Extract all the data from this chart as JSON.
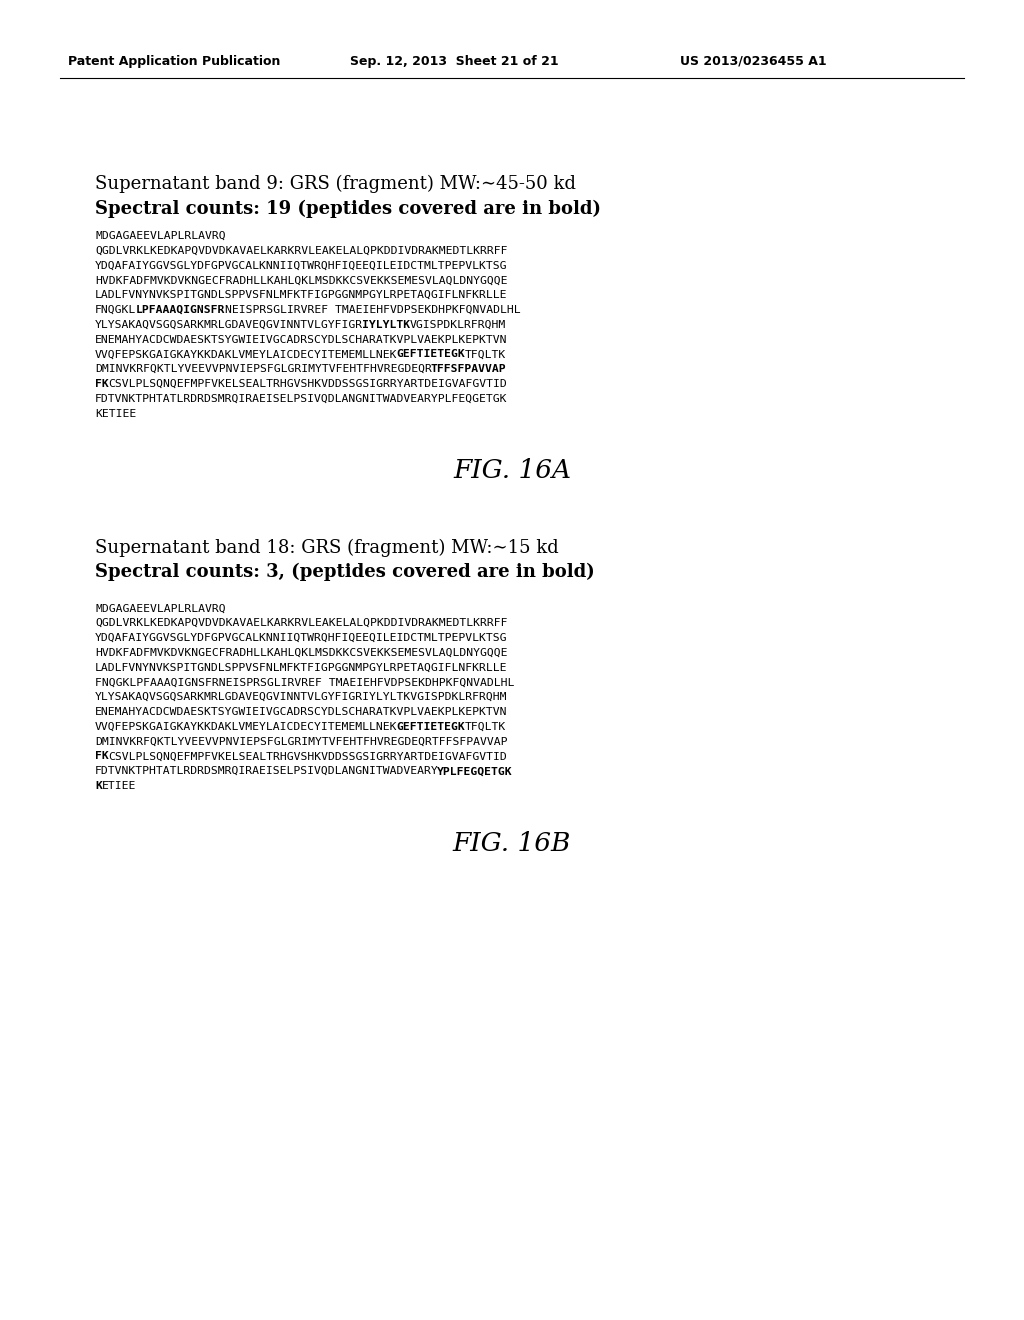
{
  "header_left": "Patent Application Publication",
  "header_mid": "Sep. 12, 2013  Sheet 21 of 21",
  "header_right": "US 2013/0236455 A1",
  "background_color": "#ffffff",
  "fig16a_label": "FIG. 16A",
  "fig16b_label": "FIG. 16B",
  "section_a_title1": "Supernatant band 9: GRS (fragment) MW:∼45-50 kd",
  "section_a_title2": "Spectral counts: 19 (peptides covered are in bold)",
  "section_b_title1": "Supernatant band 18: GRS (fragment) MW:∼15 kd",
  "section_b_title2": "Spectral counts: 3, (peptides covered are in bold)",
  "lines_a": [
    [
      "MDGAGAEEVLAPLRLAVRQ",
      "",
      ""
    ],
    [
      "QGDLVRKLKEDKAPQVDVDKAVAELKARKRVLEAKELALQPKDDIVDRAKMEDTLKRRFF",
      "",
      ""
    ],
    [
      "YDQAFAIYGGVSGLYDFGPVGCALKNNIIQTWRQHFIQEEQILEIDCTMLTPEPVLKTSG",
      "",
      ""
    ],
    [
      "HVDKFADFMVKDVKNGECFRADHLLKAHLQKLMSDKKCSVEKKSEMESVLAQLDNYGQQE",
      "",
      ""
    ],
    [
      "LADLFVNYNVKSPITGNDLSPPVSFNLMFKTFIGPGGNMPGYLRPETAQGIFLNFKRLLE",
      "",
      ""
    ],
    [
      "FNQGKL",
      "LPFAAAQIGNSFR",
      "NEISPRSGLIRVREF TMAEIEHFVDPSEKDHPKFQNVADLHL"
    ],
    [
      "YLYSAKAQVSGQSARKMRLGDAVEQGVINNTVLGYFIGR",
      "IYLYLTK",
      "VGISPDKLRFRQHM"
    ],
    [
      "ENEMAHYACDCWDAESKTSYGWIEIVGCADRSCYDLSCHARATKVPLVAEKPLKEPKTVN",
      "",
      ""
    ],
    [
      "VVQFEPSKGAIGKAYKKDAKLVMEYLAICDECYITEMEMLLNEK",
      "GEFTIETEGK",
      "TFQLTK"
    ],
    [
      "DMINVKRFQKTLYVEEVVPNVIEPSFGLGRIMYTVFEHTFHVREGDEQR",
      "TFFSFPAVVAP",
      ""
    ],
    [
      "",
      "FK",
      "CSVLPLSQNQEFMPFVKELSEALTRHGVSHKVDDSSGSIGRRYARTDEIGVAFGVTID"
    ],
    [
      "FDTVNKTPHTATLRDRDSMRQIRAEISELPSIVQDLANGNITWADVEARYPLFEQGETGK",
      "",
      ""
    ],
    [
      "KETIEE",
      "",
      ""
    ]
  ],
  "lines_b": [
    [
      "MDGAGAEEVLAPLRLAVRQ",
      "",
      ""
    ],
    [
      "QGDLVRKLKEDKAPQVDVDKAVAELKARKRVLEAKELALQPKDDIVDRAKMEDTLKRRFF",
      "",
      ""
    ],
    [
      "YDQAFAIYGGVSGLYDFGPVGCALKNNIIQTWRQHFIQEEQILEIDCTMLTPEPVLKTSG",
      "",
      ""
    ],
    [
      "HVDKFADFMVKDVKNGECFRADHLLKAHLQKLMSDKKCSVEKKSEMESVLAQLDNYGQQE",
      "",
      ""
    ],
    [
      "LADLFVNYNVKSPITGNDLSPPVSFNLMFKTFIGPGGNMPGYLRPETAQGIFLNFKRLLE",
      "",
      ""
    ],
    [
      "FNQGKLPFAAAQIGNSFRNEISPRSGLIRVREF TMAEIEHFVDPSEKDHPKFQNVADLHL",
      "",
      ""
    ],
    [
      "YLYSAKAQVSGQSARKMRLGDAVEQGVINNTVLGYFIGRIYLYLTKVGISPDKLRFRQHM",
      "",
      ""
    ],
    [
      "ENEMAHYACDCWDAESKTSYGWIEIVGCADRSCYDLSCHARATKVPLVAEKPLKEPKTVN",
      "",
      ""
    ],
    [
      "VVQFEPSKGAIGKAYKKDAKLVMEYLAICDECYITEMEMLLNEK",
      "GEFTIETEGK",
      "TFQLTK"
    ],
    [
      "DMINVKRFQKTLYVEEVVPNVIEPSFGLGRIMYTVFEHTFHVREGDEQRTFFSFPAVVAP",
      "",
      ""
    ],
    [
      "",
      "FK",
      "CSVLPLSQNQEFMPFVKELSEALTRHGVSHKVDDSSGSIGRRYARTDEIGVAFGVTID"
    ],
    [
      "FDTVNKTPHTATLRDRDSMRQIRAEISELPSIVQDLANGNITWADVEARY",
      "YPLFEGQETGK",
      ""
    ],
    [
      "",
      "K",
      "ETIEE"
    ]
  ]
}
